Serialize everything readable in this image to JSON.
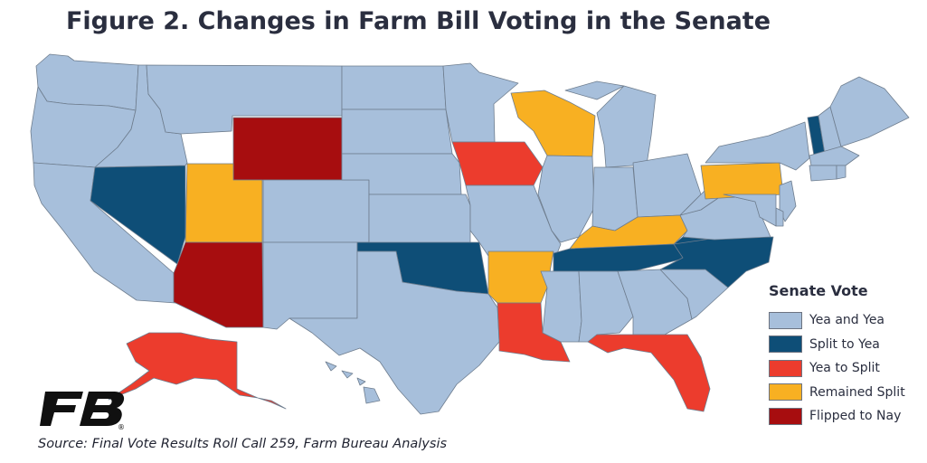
{
  "title": "Figure 2. Changes in Farm Bill Voting in the Senate",
  "source": "Source: Final Vote Results Roll Call 259, Farm Bureau Analysis",
  "logo_text": "FB",
  "colors": {
    "yea_and_yea": "#a7bfdb",
    "split_to_yea": "#0e4e77",
    "yea_to_split": "#ec3c2d",
    "remained_split": "#f8b022",
    "flipped_to_nay": "#a70d0f",
    "border": "#6e7d8e",
    "logo": "#101010"
  },
  "legend": {
    "title": "Senate Vote",
    "items": [
      {
        "key": "yea_and_yea",
        "label": "Yea and Yea",
        "color": "#a7bfdb"
      },
      {
        "key": "split_to_yea",
        "label": "Split to Yea",
        "color": "#0e4e77"
      },
      {
        "key": "yea_to_split",
        "label": "Yea to Split",
        "color": "#ec3c2d"
      },
      {
        "key": "remained_split",
        "label": "Remained Split",
        "color": "#f8b022"
      },
      {
        "key": "flipped_to_nay",
        "label": "Flipped to Nay",
        "color": "#a70d0f"
      }
    ]
  },
  "states": {
    "WA": "yea_and_yea",
    "OR": "yea_and_yea",
    "CA": "yea_and_yea",
    "NV": "split_to_yea",
    "ID": "yea_and_yea",
    "MT": "yea_and_yea",
    "WY": "flipped_to_nay",
    "UT": "remained_split",
    "AZ": "flipped_to_nay",
    "CO": "yea_and_yea",
    "NM": "yea_and_yea",
    "ND": "yea_and_yea",
    "SD": "yea_and_yea",
    "NE": "yea_and_yea",
    "KS": "yea_and_yea",
    "OK": "split_to_yea",
    "TX": "yea_and_yea",
    "MN": "yea_and_yea",
    "IA": "yea_to_split",
    "MO": "yea_and_yea",
    "AR": "remained_split",
    "LA": "yea_to_split",
    "WI": "remained_split",
    "IL": "yea_and_yea",
    "MI": "yea_and_yea",
    "IN": "yea_and_yea",
    "OH": "yea_and_yea",
    "KY": "remained_split",
    "TN": "split_to_yea",
    "MS": "yea_and_yea",
    "AL": "yea_and_yea",
    "GA": "yea_and_yea",
    "FL": "yea_to_split",
    "SC": "yea_and_yea",
    "NC": "split_to_yea",
    "VA": "yea_and_yea",
    "WV": "yea_and_yea",
    "PA": "remained_split",
    "NY": "yea_and_yea",
    "VT": "split_to_yea",
    "NH": "yea_and_yea",
    "ME": "yea_and_yea",
    "MA": "yea_and_yea",
    "CT": "yea_and_yea",
    "RI": "yea_and_yea",
    "NJ": "yea_and_yea",
    "DE": "yea_and_yea",
    "MD": "yea_and_yea",
    "AK": "yea_to_split",
    "HI": "yea_and_yea"
  }
}
